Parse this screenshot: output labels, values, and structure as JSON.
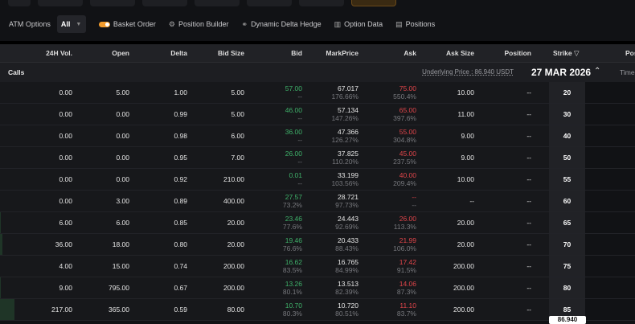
{
  "toolbar": {
    "atm_label": "ATM Options",
    "atm_value": "All",
    "basket": "Basket Order",
    "position_builder": "Position Builder",
    "delta_hedge": "Dynamic Delta Hedge",
    "option_data": "Option Data",
    "positions": "Positions",
    "basket_enabled": true
  },
  "accent_color": "#f29b2c",
  "headers": [
    "24H Vol.",
    "Open",
    "Delta",
    "Bid Size",
    "Bid",
    "MarkPrice",
    "Ask",
    "Ask Size",
    "Position",
    "Strike",
    "Pos"
  ],
  "calls_label": "Calls",
  "underlying": "Underlying Price : 86.940 USDT",
  "expiry": "27 MAR 2026",
  "time_label": "Time",
  "underlying_badge": "86.940",
  "rows": [
    {
      "vol": "0.00",
      "open": "5.00",
      "delta": "1.00",
      "bidsize": "5.00",
      "bid": "57.00",
      "bidiv": "--",
      "mark": "67.017",
      "markiv": "176.66%",
      "ask": "75.00",
      "askiv": "550.4%",
      "asksize": "10.00",
      "pos": "--",
      "strike": "20",
      "volbar": 0
    },
    {
      "vol": "0.00",
      "open": "0.00",
      "delta": "0.99",
      "bidsize": "5.00",
      "bid": "46.00",
      "bidiv": "--",
      "mark": "57.134",
      "markiv": "147.26%",
      "ask": "65.00",
      "askiv": "397.6%",
      "asksize": "11.00",
      "pos": "--",
      "strike": "30",
      "volbar": 0
    },
    {
      "vol": "0.00",
      "open": "0.00",
      "delta": "0.98",
      "bidsize": "6.00",
      "bid": "36.00",
      "bidiv": "--",
      "mark": "47.366",
      "markiv": "126.27%",
      "ask": "55.00",
      "askiv": "304.8%",
      "asksize": "9.00",
      "pos": "--",
      "strike": "40",
      "volbar": 0
    },
    {
      "vol": "0.00",
      "open": "0.00",
      "delta": "0.95",
      "bidsize": "7.00",
      "bid": "26.00",
      "bidiv": "--",
      "mark": "37.825",
      "markiv": "110.20%",
      "ask": "45.00",
      "askiv": "237.5%",
      "asksize": "9.00",
      "pos": "--",
      "strike": "50",
      "volbar": 0
    },
    {
      "vol": "0.00",
      "open": "0.00",
      "delta": "0.92",
      "bidsize": "210.00",
      "bid": "0.01",
      "bidiv": "--",
      "mark": "33.199",
      "markiv": "103.56%",
      "ask": "40.00",
      "askiv": "209.4%",
      "asksize": "10.00",
      "pos": "--",
      "strike": "55",
      "volbar": 0
    },
    {
      "vol": "0.00",
      "open": "3.00",
      "delta": "0.89",
      "bidsize": "400.00",
      "bid": "27.57",
      "bidiv": "73.2%",
      "mark": "28.721",
      "markiv": "97.73%",
      "ask": "--",
      "askiv": "--",
      "asksize": "--",
      "pos": "--",
      "strike": "60",
      "volbar": 0
    },
    {
      "vol": "6.00",
      "open": "6.00",
      "delta": "0.85",
      "bidsize": "20.00",
      "bid": "23.46",
      "bidiv": "77.6%",
      "mark": "24.443",
      "markiv": "92.69%",
      "ask": "26.00",
      "askiv": "113.3%",
      "asksize": "20.00",
      "pos": "--",
      "strike": "65",
      "volbar": 3
    },
    {
      "vol": "36.00",
      "open": "18.00",
      "delta": "0.80",
      "bidsize": "20.00",
      "bid": "19.46",
      "bidiv": "76.6%",
      "mark": "20.433",
      "markiv": "88.43%",
      "ask": "21.99",
      "askiv": "106.0%",
      "asksize": "20.00",
      "pos": "--",
      "strike": "70",
      "volbar": 17
    },
    {
      "vol": "4.00",
      "open": "15.00",
      "delta": "0.74",
      "bidsize": "200.00",
      "bid": "16.62",
      "bidiv": "83.5%",
      "mark": "16.765",
      "markiv": "84.99%",
      "ask": "17.42",
      "askiv": "91.5%",
      "asksize": "200.00",
      "pos": "--",
      "strike": "75",
      "volbar": 2
    },
    {
      "vol": "9.00",
      "open": "795.00",
      "delta": "0.67",
      "bidsize": "200.00",
      "bid": "13.26",
      "bidiv": "80.1%",
      "mark": "13.513",
      "markiv": "82.39%",
      "ask": "14.06",
      "askiv": "87.3%",
      "asksize": "200.00",
      "pos": "--",
      "strike": "80",
      "volbar": 4
    },
    {
      "vol": "217.00",
      "open": "365.00",
      "delta": "0.59",
      "bidsize": "80.00",
      "bid": "10.70",
      "bidiv": "80.3%",
      "mark": "10.720",
      "markiv": "80.51%",
      "ask": "11.10",
      "askiv": "83.7%",
      "asksize": "200.00",
      "pos": "--",
      "strike": "85",
      "volbar": 100
    }
  ]
}
